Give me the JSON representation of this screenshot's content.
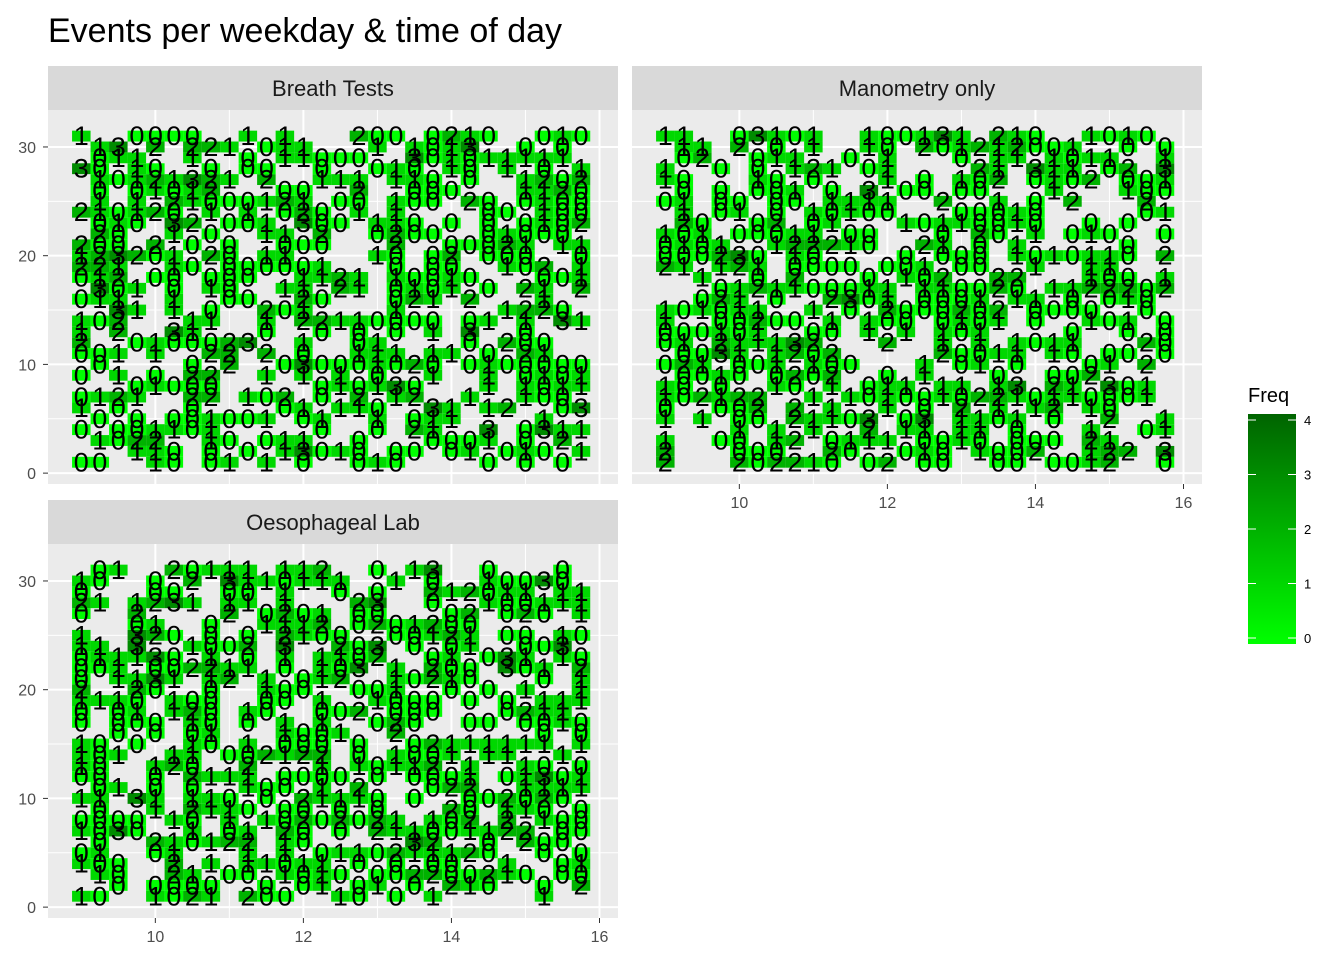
{
  "chart_data": {
    "type": "heatmap",
    "title": "Events per weekday & time of day",
    "xlabel": "",
    "ylabel": "",
    "xlim": [
      8.55,
      16.25
    ],
    "ylim": [
      -1.0,
      33.4
    ],
    "x_ticks": [
      10,
      12,
      14,
      16
    ],
    "y_ticks": [
      0,
      10,
      20,
      30
    ],
    "x_step_minutes": 15,
    "x_start": 9.0,
    "x_end": 15.75,
    "y_start": 1,
    "y_end": 31,
    "grid": true,
    "legend": {
      "title": "Freq",
      "position": "right",
      "ticks": [
        0,
        1,
        2,
        3,
        4
      ],
      "low_color": "#00ff00",
      "high_color": "#006400",
      "range": [
        0,
        4
      ]
    },
    "panels": [
      {
        "name": "Breath Tests",
        "seed": 11,
        "fill_rate": 0.6
      },
      {
        "name": "Manometry only",
        "seed": 29,
        "fill_rate": 0.62
      },
      {
        "name": "Oesophageal Lab",
        "seed": 47,
        "fill_rate": 0.62
      }
    ],
    "colors": {
      "panel_bg": "#ebebeb",
      "strip_bg": "#d9d9d9",
      "grid_major": "#ffffff",
      "text": "#000000",
      "tick_text": "#4d4d4d"
    }
  }
}
